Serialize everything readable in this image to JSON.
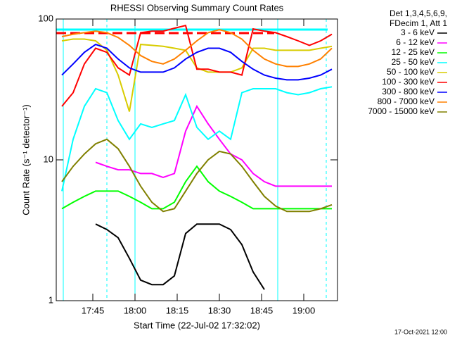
{
  "chart_data": {
    "type": "line",
    "title": "RHESSI Observing Summary Count Rates",
    "x_label": "Start Time (22-Jul-02 17:32:02)",
    "y_label": "Count Rate (s⁻¹ detector⁻¹)",
    "legend_header": [
      "Det 1,3,4,5,6,9,",
      "FDecim 1, Att 1"
    ],
    "footer": "17-Oct-2021 12:00",
    "log_y": true,
    "legend": "right",
    "xlim": [
      "17:32",
      "19:12"
    ],
    "xticks": [
      "17:45",
      "18:00",
      "18:15",
      "18:30",
      "18:45",
      "19:00"
    ],
    "ylim": [
      1,
      100
    ],
    "yticks": [
      1,
      10,
      100
    ],
    "x": [
      "17:34",
      "17:38",
      "17:42",
      "17:46",
      "17:50",
      "17:54",
      "17:58",
      "18:02",
      "18:06",
      "18:10",
      "18:14",
      "18:18",
      "18:22",
      "18:26",
      "18:30",
      "18:34",
      "18:38",
      "18:42",
      "18:46",
      "18:50",
      "18:54",
      "18:58",
      "19:02",
      "19:06",
      "19:10"
    ],
    "series": [
      {
        "name": "3 - 6 keV",
        "color": "#000000",
        "values": [
          null,
          null,
          null,
          3.5,
          3.2,
          2.8,
          2,
          1.4,
          1.3,
          1.3,
          1.5,
          3,
          3.5,
          3.5,
          3.5,
          3.2,
          2.5,
          1.6,
          1.2,
          null,
          null,
          null,
          null,
          null,
          null
        ]
      },
      {
        "name": "6 - 12 keV",
        "color": "#ff00ff",
        "values": [
          null,
          null,
          null,
          9.6,
          9,
          8.5,
          8.5,
          8,
          8,
          7.5,
          8,
          16,
          24,
          18,
          14,
          11,
          10,
          8,
          7,
          6.5,
          6.5,
          6.5,
          6.5,
          6.5,
          6.5
        ]
      },
      {
        "name": "12 - 25 keV",
        "color": "#00ff00",
        "values": [
          4.5,
          5,
          5.5,
          6,
          6,
          6,
          5.5,
          5,
          4.5,
          4.5,
          5,
          7,
          9,
          7,
          6,
          5.5,
          5,
          4.5,
          4.5,
          4.5,
          4.5,
          4.5,
          4.5,
          4.5,
          4.5
        ]
      },
      {
        "name": "25 - 50 keV",
        "color": "#00ffff",
        "values": [
          6,
          14,
          24,
          32,
          30,
          19,
          14,
          18,
          17,
          18,
          19,
          29,
          17,
          14,
          16,
          14,
          30,
          32,
          32,
          32,
          30,
          29,
          30,
          32,
          33
        ]
      },
      {
        "name": "50 - 100 keV",
        "color": "#d8cc00",
        "values": [
          70,
          72,
          72,
          70,
          60,
          40,
          22,
          66,
          65,
          64,
          62,
          60,
          45,
          42,
          42,
          42,
          45,
          62,
          62,
          60,
          60,
          60,
          60,
          62,
          64
        ]
      },
      {
        "name": "100 - 300 keV",
        "color": "#ff0000",
        "values": [
          24,
          30,
          48,
          62,
          58,
          45,
          40,
          80,
          82,
          82,
          86,
          90,
          44,
          44,
          42,
          42,
          40,
          85,
          82,
          80,
          75,
          70,
          65,
          70,
          78
        ]
      },
      {
        "name": "300 - 800 keV",
        "color": "#0000ff",
        "values": [
          40,
          48,
          58,
          66,
          62,
          52,
          45,
          42,
          42,
          42,
          45,
          52,
          58,
          62,
          62,
          58,
          50,
          44,
          40,
          38,
          37,
          37,
          38,
          40,
          44
        ]
      },
      {
        "name": "800 - 7000 keV",
        "color": "#ff8000",
        "values": [
          75,
          78,
          80,
          82,
          80,
          74,
          65,
          55,
          50,
          48,
          52,
          60,
          70,
          80,
          84,
          80,
          72,
          60,
          52,
          48,
          46,
          46,
          48,
          52,
          62
        ]
      },
      {
        "name": "7000 - 15000 keV",
        "color": "#808000",
        "values": [
          7,
          9,
          11,
          13,
          14,
          12,
          9,
          6.5,
          5,
          4.3,
          4.5,
          6,
          8,
          10,
          11.5,
          11,
          9,
          7,
          5.5,
          4.7,
          4.3,
          4.3,
          4.3,
          4.5,
          4.8
        ]
      }
    ]
  }
}
